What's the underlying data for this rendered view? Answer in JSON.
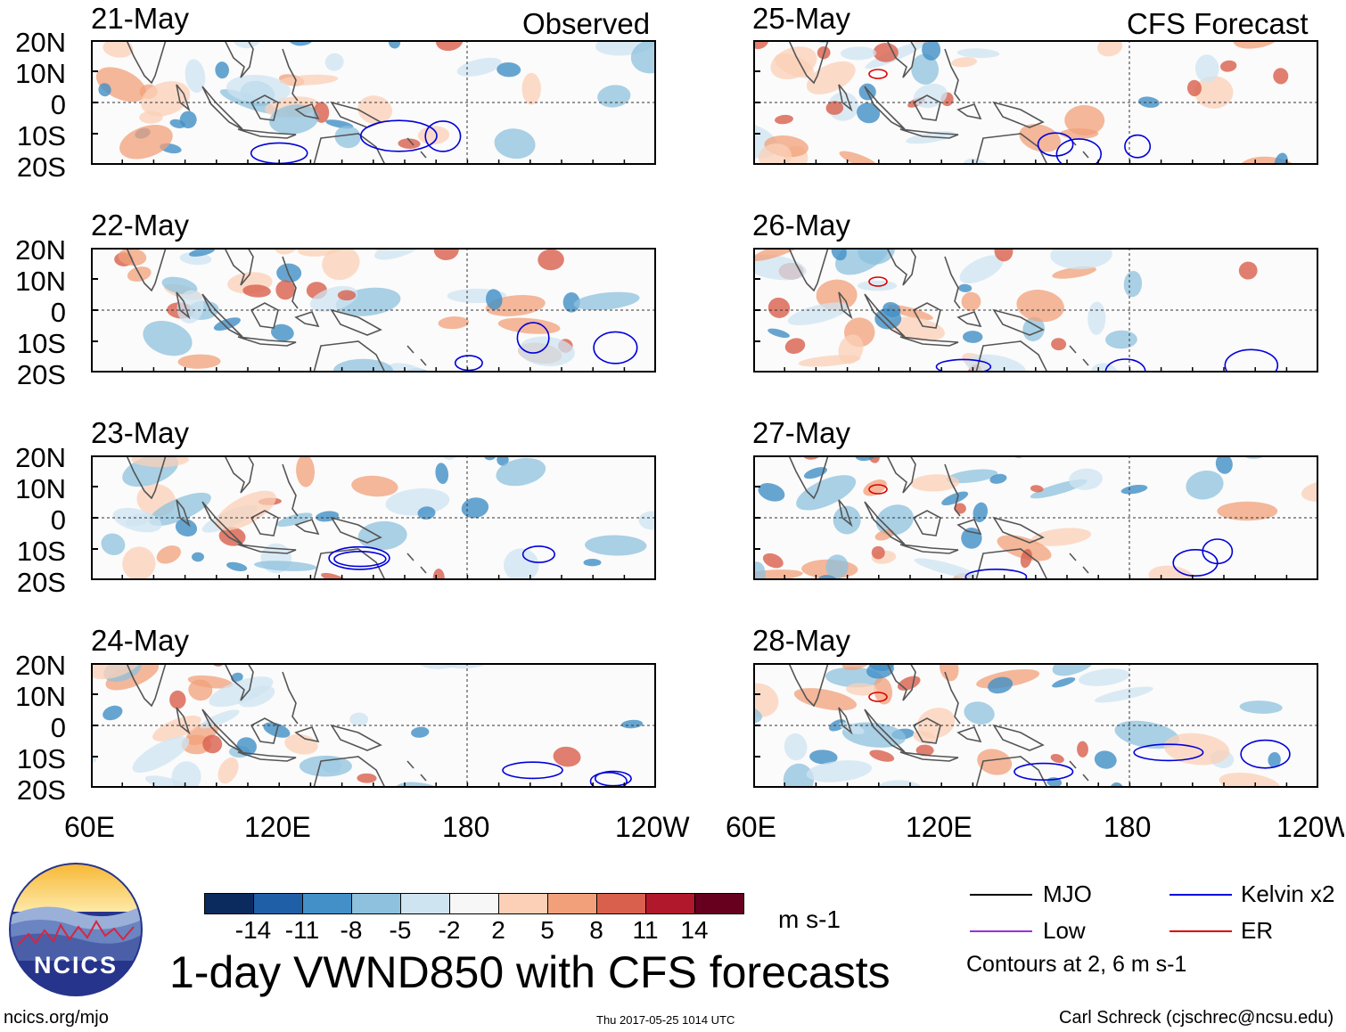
{
  "headers": {
    "observed": "Observed",
    "forecast": "CFS Forecast"
  },
  "panels_left": [
    {
      "date": "21-May"
    },
    {
      "date": "22-May"
    },
    {
      "date": "23-May"
    },
    {
      "date": "24-May"
    }
  ],
  "panels_right": [
    {
      "date": "25-May"
    },
    {
      "date": "26-May"
    },
    {
      "date": "27-May"
    },
    {
      "date": "28-May"
    }
  ],
  "lat_labels": [
    "20N",
    "10N",
    "0",
    "10S",
    "20S"
  ],
  "lon_labels": [
    "60E",
    "120E",
    "180",
    "120W"
  ],
  "colorbar": {
    "colors": [
      "#0b2b5e",
      "#1f5fa8",
      "#4290c7",
      "#8dc1de",
      "#cfe4f1",
      "#f7f7f7",
      "#fbd0b7",
      "#f2a07a",
      "#d9604c",
      "#b2182b",
      "#67001f"
    ],
    "labels": [
      "-14",
      "-11",
      "-8",
      "-5",
      "-2",
      "2",
      "5",
      "8",
      "11",
      "14"
    ],
    "units": "m s-1"
  },
  "legend": {
    "items": [
      {
        "label": "MJO",
        "color": "#000000"
      },
      {
        "label": "Kelvin x2",
        "color": "#0000dd"
      },
      {
        "label": "Low",
        "color": "#9b30d9"
      },
      {
        "label": "ER",
        "color": "#dd0000"
      }
    ],
    "note": "Contours at 2, 6 m s-1"
  },
  "title": "1-day VWND850 with CFS forecasts",
  "logo_text": "NCICS",
  "footer": {
    "url": "ncics.org/mjo",
    "timestamp": "Thu 2017-05-25 1014 UTC",
    "credit": "Carl Schreck (cjschrec@ncsu.edu)"
  }
}
